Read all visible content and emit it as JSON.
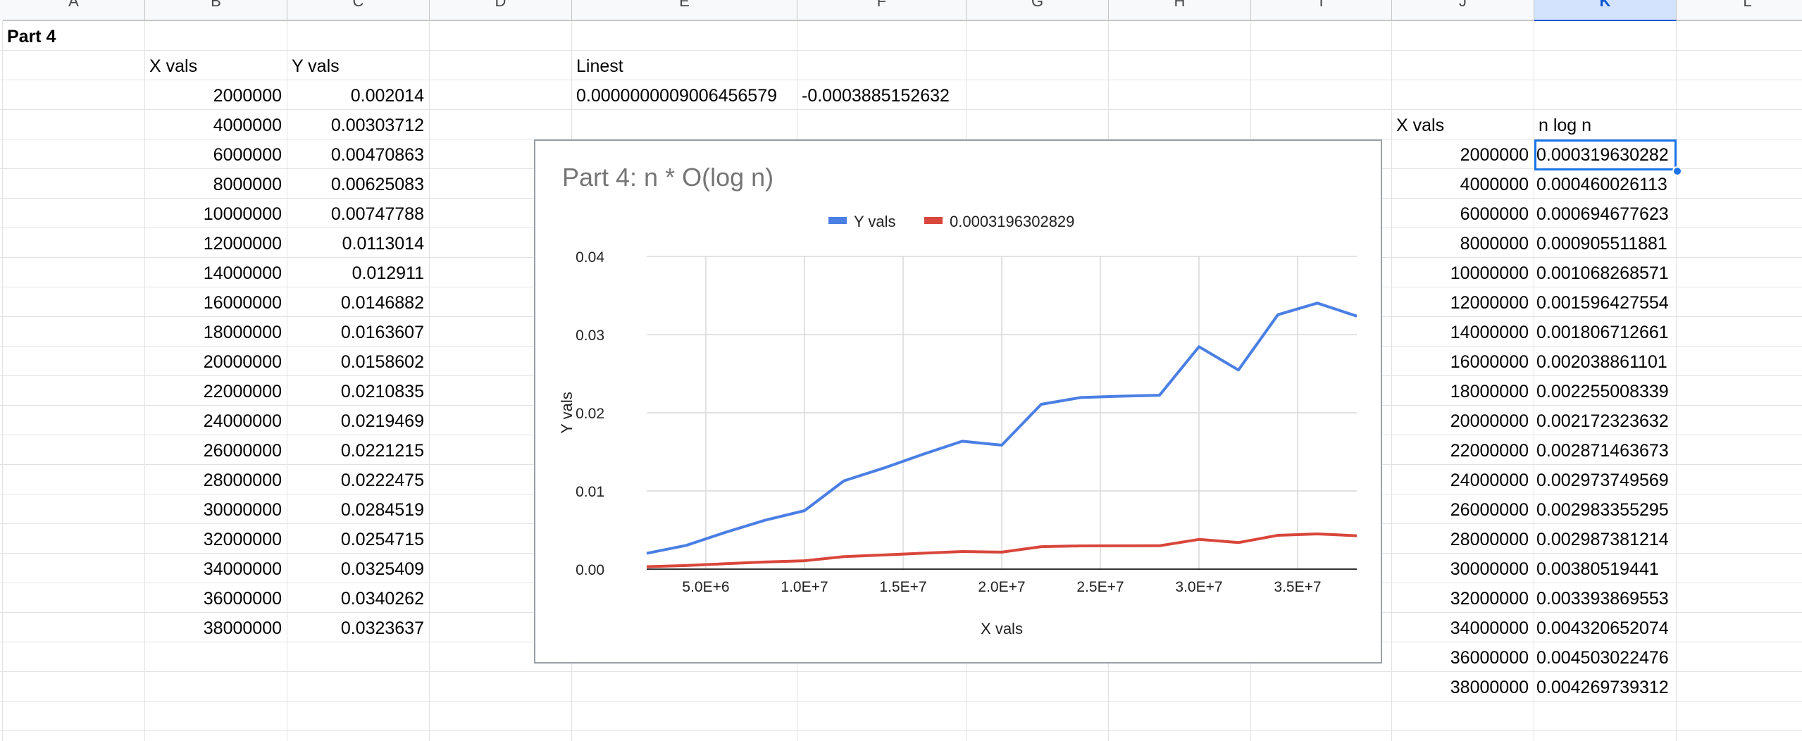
{
  "columns": [
    "A",
    "B",
    "C",
    "D",
    "E",
    "F",
    "G",
    "H",
    "I",
    "J",
    "K",
    "L"
  ],
  "active_column": "K",
  "sheet": {
    "part_label": "Part 4",
    "x_header": "X vals",
    "y_header": "Y vals",
    "linest_label": "Linest",
    "linest_values": [
      "0.0000000009006456579",
      "-0.0003885152632"
    ],
    "x_vals": [
      "2000000",
      "4000000",
      "6000000",
      "8000000",
      "10000000",
      "12000000",
      "14000000",
      "16000000",
      "18000000",
      "20000000",
      "22000000",
      "24000000",
      "26000000",
      "28000000",
      "30000000",
      "32000000",
      "34000000",
      "36000000",
      "38000000"
    ],
    "y_vals": [
      "0.002014",
      "0.00303712",
      "0.00470863",
      "0.00625083",
      "0.00747788",
      "0.0113014",
      "0.012911",
      "0.0146882",
      "0.0163607",
      "0.0158602",
      "0.0210835",
      "0.0219469",
      "0.0221215",
      "0.0222475",
      "0.0284519",
      "0.0254715",
      "0.0325409",
      "0.0340262",
      "0.0323637"
    ],
    "right_x_header": "X vals",
    "right_nlogn_header": "n log n",
    "nlogn_vals": [
      "0.000319630282",
      "0.000460026113",
      "0.000694677623",
      "0.000905511881",
      "0.001068268571",
      "0.001596427554",
      "0.001806712661",
      "0.002038861101",
      "0.002255008339",
      "0.002172323632",
      "0.002871463673",
      "0.002973749569",
      "0.002983355295",
      "0.002987381214",
      "0.00380519441",
      "0.003393869553",
      "0.004320652074",
      "0.004503022476",
      "0.004269739312"
    ]
  },
  "chart_data": {
    "type": "line",
    "title": "Part 4: n * O(log n)",
    "xlabel": "X vals",
    "ylabel": "Y vals",
    "legend_position": "top",
    "grid": true,
    "xlim": [
      2000000,
      38000000
    ],
    "ylim": [
      0,
      0.04
    ],
    "x_ticks": [
      5000000,
      10000000,
      15000000,
      20000000,
      25000000,
      30000000,
      35000000
    ],
    "x_tick_labels": [
      "5.0E+6",
      "1.0E+7",
      "1.5E+7",
      "2.0E+7",
      "2.5E+7",
      "3.0E+7",
      "3.5E+7"
    ],
    "y_ticks": [
      0,
      0.01,
      0.02,
      0.03,
      0.04
    ],
    "y_tick_labels": [
      "0.00",
      "0.01",
      "0.02",
      "0.03",
      "0.04"
    ],
    "x": [
      2000000,
      4000000,
      6000000,
      8000000,
      10000000,
      12000000,
      14000000,
      16000000,
      18000000,
      20000000,
      22000000,
      24000000,
      26000000,
      28000000,
      30000000,
      32000000,
      34000000,
      36000000,
      38000000
    ],
    "series": [
      {
        "name": "Y vals",
        "color": "#4a7fe4",
        "values": [
          0.002014,
          0.00303712,
          0.00470863,
          0.00625083,
          0.00747788,
          0.0113014,
          0.012911,
          0.0146882,
          0.0163607,
          0.0158602,
          0.0210835,
          0.0219469,
          0.0221215,
          0.0222475,
          0.0284519,
          0.0254715,
          0.0325409,
          0.0340262,
          0.0323637
        ]
      },
      {
        "name": "0.0003196302829",
        "color": "#d9463b",
        "values": [
          0.000319630282,
          0.000460026113,
          0.000694677623,
          0.000905511881,
          0.001068268571,
          0.001596427554,
          0.001806712661,
          0.002038861101,
          0.002255008339,
          0.002172323632,
          0.002871463673,
          0.002973749569,
          0.002983355295,
          0.002987381214,
          0.00380519441,
          0.003393869553,
          0.004320652074,
          0.004503022476,
          0.004269739312
        ]
      }
    ]
  }
}
